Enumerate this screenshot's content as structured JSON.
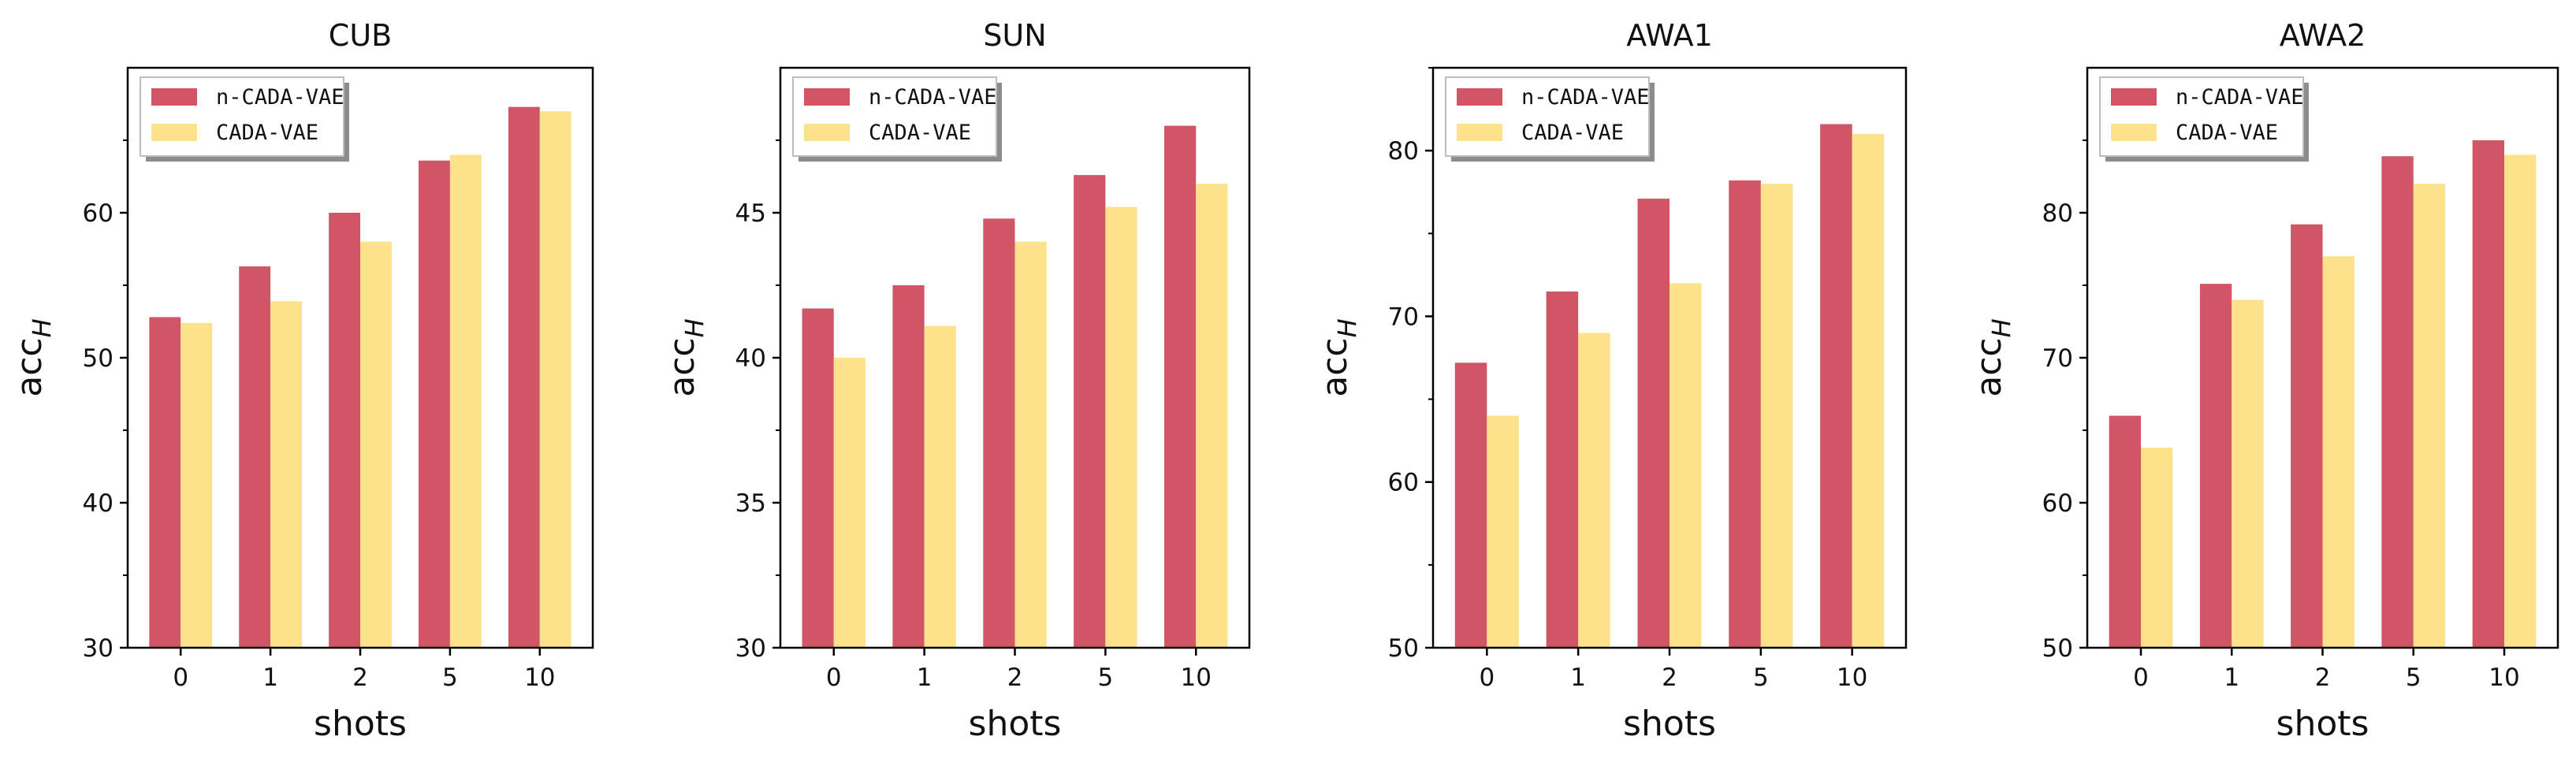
{
  "colors": {
    "n_cada_vae": "#d05565",
    "cada_vae": "#fce28a",
    "axis": "#000000",
    "legend_shadow": "#8c8c8c",
    "legend_border": "#bdbdbd"
  },
  "chart_data": [
    {
      "type": "bar",
      "title": "CUB",
      "xlabel": "shots",
      "ylabel_main": "acc",
      "ylabel_sub": "H",
      "categories": [
        "0",
        "1",
        "2",
        "5",
        "10"
      ],
      "ylim": [
        30,
        70
      ],
      "yticks": [
        30,
        40,
        50,
        60
      ],
      "yticks_minor": [
        35,
        45,
        55,
        65
      ],
      "legend_position": "top-left",
      "series": [
        {
          "name": "n-CADA-VAE",
          "values": [
            52.8,
            56.3,
            60.0,
            63.6,
            67.3
          ]
        },
        {
          "name": "CADA-VAE",
          "values": [
            52.4,
            53.9,
            58.0,
            64.0,
            67.0
          ]
        }
      ]
    },
    {
      "type": "bar",
      "title": "SUN",
      "xlabel": "shots",
      "ylabel_main": "acc",
      "ylabel_sub": "H",
      "categories": [
        "0",
        "1",
        "2",
        "5",
        "10"
      ],
      "ylim": [
        30,
        50
      ],
      "yticks": [
        30,
        35,
        40,
        45
      ],
      "yticks_minor": [
        32.5,
        37.5,
        42.5,
        47.5
      ],
      "legend_position": "top-left",
      "series": [
        {
          "name": "n-CADA-VAE",
          "values": [
            41.7,
            42.5,
            44.8,
            46.3,
            48.0
          ]
        },
        {
          "name": "CADA-VAE",
          "values": [
            40.0,
            41.1,
            44.0,
            45.2,
            46.0
          ]
        }
      ]
    },
    {
      "type": "bar",
      "title": "AWA1",
      "xlabel": "shots",
      "ylabel_main": "acc",
      "ylabel_sub": "H",
      "categories": [
        "0",
        "1",
        "2",
        "5",
        "10"
      ],
      "ylim": [
        50,
        85
      ],
      "yticks": [
        50,
        60,
        70,
        80
      ],
      "yticks_minor": [
        55,
        65,
        75,
        85
      ],
      "legend_position": "top-left",
      "series": [
        {
          "name": "n-CADA-VAE",
          "values": [
            67.2,
            71.5,
            77.1,
            78.2,
            81.6
          ]
        },
        {
          "name": "CADA-VAE",
          "values": [
            64.0,
            69.0,
            72.0,
            78.0,
            81.0
          ]
        }
      ]
    },
    {
      "type": "bar",
      "title": "AWA2",
      "xlabel": "shots",
      "ylabel_main": "acc",
      "ylabel_sub": "H",
      "categories": [
        "0",
        "1",
        "2",
        "5",
        "10"
      ],
      "ylim": [
        50,
        90
      ],
      "yticks": [
        50,
        60,
        70,
        80
      ],
      "yticks_minor": [
        55,
        65,
        75,
        85
      ],
      "legend_position": "top-left",
      "series": [
        {
          "name": "n-CADA-VAE",
          "values": [
            66.0,
            75.1,
            79.2,
            83.9,
            85.0
          ]
        },
        {
          "name": "CADA-VAE",
          "values": [
            63.8,
            74.0,
            77.0,
            82.0,
            84.0
          ]
        }
      ]
    }
  ]
}
